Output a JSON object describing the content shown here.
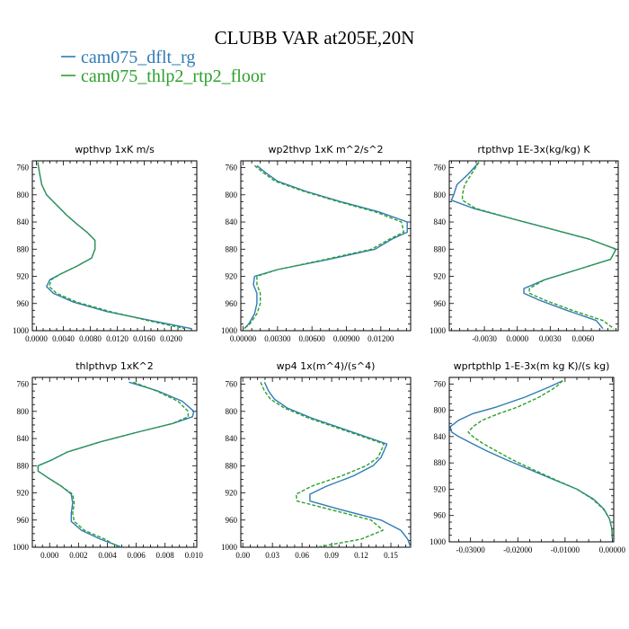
{
  "figure": {
    "title": "CLUBB VAR at205E,20N",
    "legend": [
      {
        "label": "cam075_dflt_rg",
        "color": "#2e7bb6",
        "dash": "solid"
      },
      {
        "label": "cam075_thlp2_rtp2_floor",
        "color": "#2ca02c",
        "dash": "dashed"
      }
    ]
  },
  "chart_data": [
    {
      "type": "line",
      "title": "wpthvp   1xK m/s",
      "xlim": [
        -0.0006,
        0.0238
      ],
      "ylim": [
        1000,
        750
      ],
      "xticks": [
        {
          "v": 0.0,
          "label": "0.0000"
        },
        {
          "v": 0.004,
          "label": "0.0040"
        },
        {
          "v": 0.008,
          "label": "0.0080"
        },
        {
          "v": 0.012,
          "label": "0.0120"
        },
        {
          "v": 0.016,
          "label": "0.0160"
        },
        {
          "v": 0.02,
          "label": "0.0200"
        }
      ],
      "yticks": [
        760,
        800,
        840,
        880,
        920,
        960,
        1000
      ],
      "series": [
        {
          "y": [
            752,
            770,
            785,
            800,
            815,
            830,
            843,
            855,
            867,
            880,
            893,
            905,
            917,
            925,
            935,
            945,
            958,
            972,
            985,
            997
          ],
          "x": [
            0.0002,
            0.0005,
            0.0008,
            0.0015,
            0.003,
            0.0045,
            0.006,
            0.0075,
            0.0087,
            0.0087,
            0.0082,
            0.006,
            0.0035,
            0.002,
            0.0015,
            0.0025,
            0.0055,
            0.0105,
            0.017,
            0.023
          ]
        },
        {
          "y": [
            752,
            770,
            785,
            800,
            815,
            830,
            843,
            855,
            867,
            880,
            893,
            905,
            917,
            925,
            935,
            945,
            958,
            972,
            985,
            997
          ],
          "x": [
            0.0002,
            0.0005,
            0.0008,
            0.0015,
            0.003,
            0.0045,
            0.006,
            0.0075,
            0.0087,
            0.0087,
            0.0082,
            0.006,
            0.0035,
            0.0022,
            0.0019,
            0.003,
            0.006,
            0.011,
            0.0165,
            0.022
          ]
        }
      ]
    },
    {
      "type": "line",
      "title": "wp2thvp   1xK m^2/s^2",
      "xlim": [
        -0.0002,
        0.0146
      ],
      "ylim": [
        1000,
        750
      ],
      "xticks": [
        {
          "v": 0.0,
          "label": "0.00000"
        },
        {
          "v": 0.003,
          "label": "0.00300"
        },
        {
          "v": 0.006,
          "label": "0.00600"
        },
        {
          "v": 0.009,
          "label": "0.00900"
        },
        {
          "v": 0.012,
          "label": "0.01200"
        }
      ],
      "yticks": [
        760,
        800,
        840,
        880,
        920,
        960,
        1000
      ],
      "series": [
        {
          "y": [
            757,
            768,
            780,
            795,
            810,
            825,
            840,
            855,
            865,
            880,
            895,
            910,
            920,
            932,
            945,
            960,
            975,
            990,
            997
          ],
          "x": [
            0.0012,
            0.002,
            0.003,
            0.0055,
            0.0085,
            0.0118,
            0.0143,
            0.0143,
            0.013,
            0.0115,
            0.0075,
            0.003,
            0.001,
            0.0009,
            0.0012,
            0.0012,
            0.001,
            0.0005,
            0.0001
          ]
        },
        {
          "y": [
            757,
            768,
            780,
            795,
            810,
            825,
            840,
            855,
            865,
            880,
            895,
            910,
            920,
            932,
            945,
            960,
            975,
            990,
            997
          ],
          "x": [
            0.001,
            0.0018,
            0.0028,
            0.0053,
            0.0083,
            0.0115,
            0.0138,
            0.014,
            0.0128,
            0.0112,
            0.0072,
            0.003,
            0.0012,
            0.0012,
            0.0015,
            0.0015,
            0.0012,
            0.0006,
            0.0001
          ]
        }
      ]
    },
    {
      "type": "line",
      "title": "rtpthvp   1E-3x(kg/kg) K",
      "xlim": [
        -0.0062,
        0.0092
      ],
      "ylim": [
        1000,
        750
      ],
      "xticks": [
        {
          "v": -0.003,
          "label": "-0.0030"
        },
        {
          "v": 0.0,
          "label": "0.0000"
        },
        {
          "v": 0.003,
          "label": "0.0030"
        },
        {
          "v": 0.006,
          "label": "0.0060"
        }
      ],
      "yticks": [
        760,
        800,
        840,
        880,
        920,
        960,
        1000
      ],
      "series": [
        {
          "y": [
            752,
            770,
            785,
            800,
            808,
            820,
            835,
            850,
            865,
            880,
            895,
            910,
            925,
            938,
            945,
            955,
            970,
            985,
            997
          ],
          "x": [
            -0.0035,
            -0.0045,
            -0.0055,
            -0.0058,
            -0.006,
            -0.004,
            -0.0005,
            0.003,
            0.0065,
            0.009,
            0.0085,
            0.0055,
            0.0025,
            0.0006,
            0.0006,
            0.002,
            0.0045,
            0.0072,
            0.0078
          ]
        },
        {
          "y": [
            752,
            770,
            785,
            800,
            808,
            820,
            835,
            850,
            865,
            880,
            895,
            910,
            925,
            938,
            945,
            955,
            970,
            985,
            997
          ],
          "x": [
            -0.0035,
            -0.0042,
            -0.0048,
            -0.005,
            -0.005,
            -0.0038,
            -0.0005,
            0.003,
            0.0065,
            0.009,
            0.0085,
            0.0055,
            0.0025,
            0.0011,
            0.0011,
            0.0025,
            0.005,
            0.0078,
            0.0088
          ]
        }
      ]
    },
    {
      "type": "line",
      "title": "thlpthvp   1xK^2",
      "xlim": [
        -0.0012,
        0.0102
      ],
      "ylim": [
        1000,
        750
      ],
      "xticks": [
        {
          "v": 0.0,
          "label": "0.000"
        },
        {
          "v": 0.002,
          "label": "0.002"
        },
        {
          "v": 0.004,
          "label": "0.004"
        },
        {
          "v": 0.006,
          "label": "0.006"
        },
        {
          "v": 0.008,
          "label": "0.008"
        },
        {
          "v": 0.01,
          "label": "0.010"
        }
      ],
      "yticks": [
        760,
        800,
        840,
        880,
        920,
        960,
        1000
      ],
      "series": [
        {
          "y": [
            757,
            770,
            785,
            800,
            808,
            818,
            830,
            845,
            860,
            872,
            880,
            888,
            898,
            910,
            922,
            935,
            950,
            962,
            975,
            988,
            1000
          ],
          "x": [
            0.0055,
            0.0075,
            0.0092,
            0.01,
            0.0099,
            0.0085,
            0.0062,
            0.0035,
            0.0012,
            0.0001,
            -0.0008,
            -0.0008,
            -0.0001,
            0.0008,
            0.0015,
            0.0016,
            0.0015,
            0.0015,
            0.0022,
            0.0035,
            0.005
          ]
        },
        {
          "y": [
            757,
            770,
            785,
            800,
            808,
            818,
            830,
            845,
            860,
            872,
            880,
            888,
            898,
            910,
            922,
            935,
            950,
            962,
            975,
            988,
            1000
          ],
          "x": [
            0.0058,
            0.0074,
            0.0089,
            0.0096,
            0.0096,
            0.0085,
            0.0062,
            0.0035,
            0.0012,
            0.0001,
            -0.0008,
            -0.0008,
            -0.0001,
            0.0008,
            0.0016,
            0.0017,
            0.0016,
            0.0017,
            0.0024,
            0.0038,
            0.0048
          ]
        }
      ]
    },
    {
      "type": "line",
      "title": "wp4   1x(m^4)/(s^4)",
      "xlim": [
        -0.002,
        0.17
      ],
      "ylim": [
        1000,
        750
      ],
      "xticks": [
        {
          "v": 0.0,
          "label": "0.00"
        },
        {
          "v": 0.03,
          "label": "0.03"
        },
        {
          "v": 0.06,
          "label": "0.06"
        },
        {
          "v": 0.09,
          "label": "0.09"
        },
        {
          "v": 0.12,
          "label": "0.12"
        },
        {
          "v": 0.15,
          "label": "0.15"
        }
      ],
      "yticks": [
        760,
        800,
        840,
        880,
        920,
        960,
        1000
      ],
      "series": [
        {
          "y": [
            757,
            770,
            782,
            795,
            810,
            825,
            840,
            848,
            855,
            868,
            880,
            895,
            910,
            922,
            932,
            945,
            960,
            975,
            988,
            1000
          ],
          "x": [
            0.022,
            0.026,
            0.032,
            0.045,
            0.07,
            0.1,
            0.13,
            0.146,
            0.144,
            0.14,
            0.132,
            0.112,
            0.085,
            0.068,
            0.068,
            0.1,
            0.14,
            0.16,
            0.167,
            0.17
          ]
        },
        {
          "y": [
            757,
            770,
            782,
            795,
            810,
            825,
            840,
            848,
            855,
            868,
            880,
            895,
            910,
            922,
            932,
            945,
            960,
            975,
            988,
            1000
          ],
          "x": [
            0.018,
            0.022,
            0.028,
            0.042,
            0.067,
            0.097,
            0.127,
            0.143,
            0.141,
            0.137,
            0.125,
            0.1,
            0.07,
            0.054,
            0.055,
            0.09,
            0.13,
            0.142,
            0.12,
            0.075
          ]
        }
      ]
    },
    {
      "type": "line",
      "title": "wprtpthlp   1-E-3x(m kg K)/(s kg)",
      "xlim": [
        -0.0345,
        0.0003
      ],
      "ylim": [
        1000,
        750
      ],
      "xticks": [
        {
          "v": -0.03,
          "label": "-0.03000"
        },
        {
          "v": -0.02,
          "label": "-0.02000"
        },
        {
          "v": -0.01,
          "label": "-0.01000"
        },
        {
          "v": 0.0,
          "label": "0.00000"
        }
      ],
      "yticks": [
        760,
        800,
        840,
        880,
        920,
        960,
        1000
      ],
      "series": [
        {
          "y": [
            755,
            765,
            780,
            795,
            805,
            815,
            825,
            833,
            840,
            850,
            862,
            875,
            890,
            905,
            920,
            935,
            950,
            965,
            980,
            995
          ],
          "x": [
            -0.0105,
            -0.0135,
            -0.0185,
            -0.0245,
            -0.0295,
            -0.0325,
            -0.0343,
            -0.034,
            -0.0325,
            -0.0298,
            -0.0265,
            -0.0225,
            -0.0175,
            -0.0125,
            -0.0075,
            -0.004,
            -0.0018,
            -0.0006,
            -0.0001,
            0.0
          ]
        },
        {
          "y": [
            755,
            765,
            780,
            795,
            805,
            815,
            825,
            833,
            840,
            850,
            862,
            875,
            890,
            905,
            920,
            935,
            950,
            965,
            980,
            995
          ],
          "x": [
            -0.0105,
            -0.012,
            -0.0155,
            -0.02,
            -0.024,
            -0.0275,
            -0.0295,
            -0.0305,
            -0.0295,
            -0.0275,
            -0.0245,
            -0.0212,
            -0.0168,
            -0.0122,
            -0.0075,
            -0.0042,
            -0.0019,
            -0.0006,
            -0.0001,
            0.0
          ]
        }
      ]
    }
  ]
}
